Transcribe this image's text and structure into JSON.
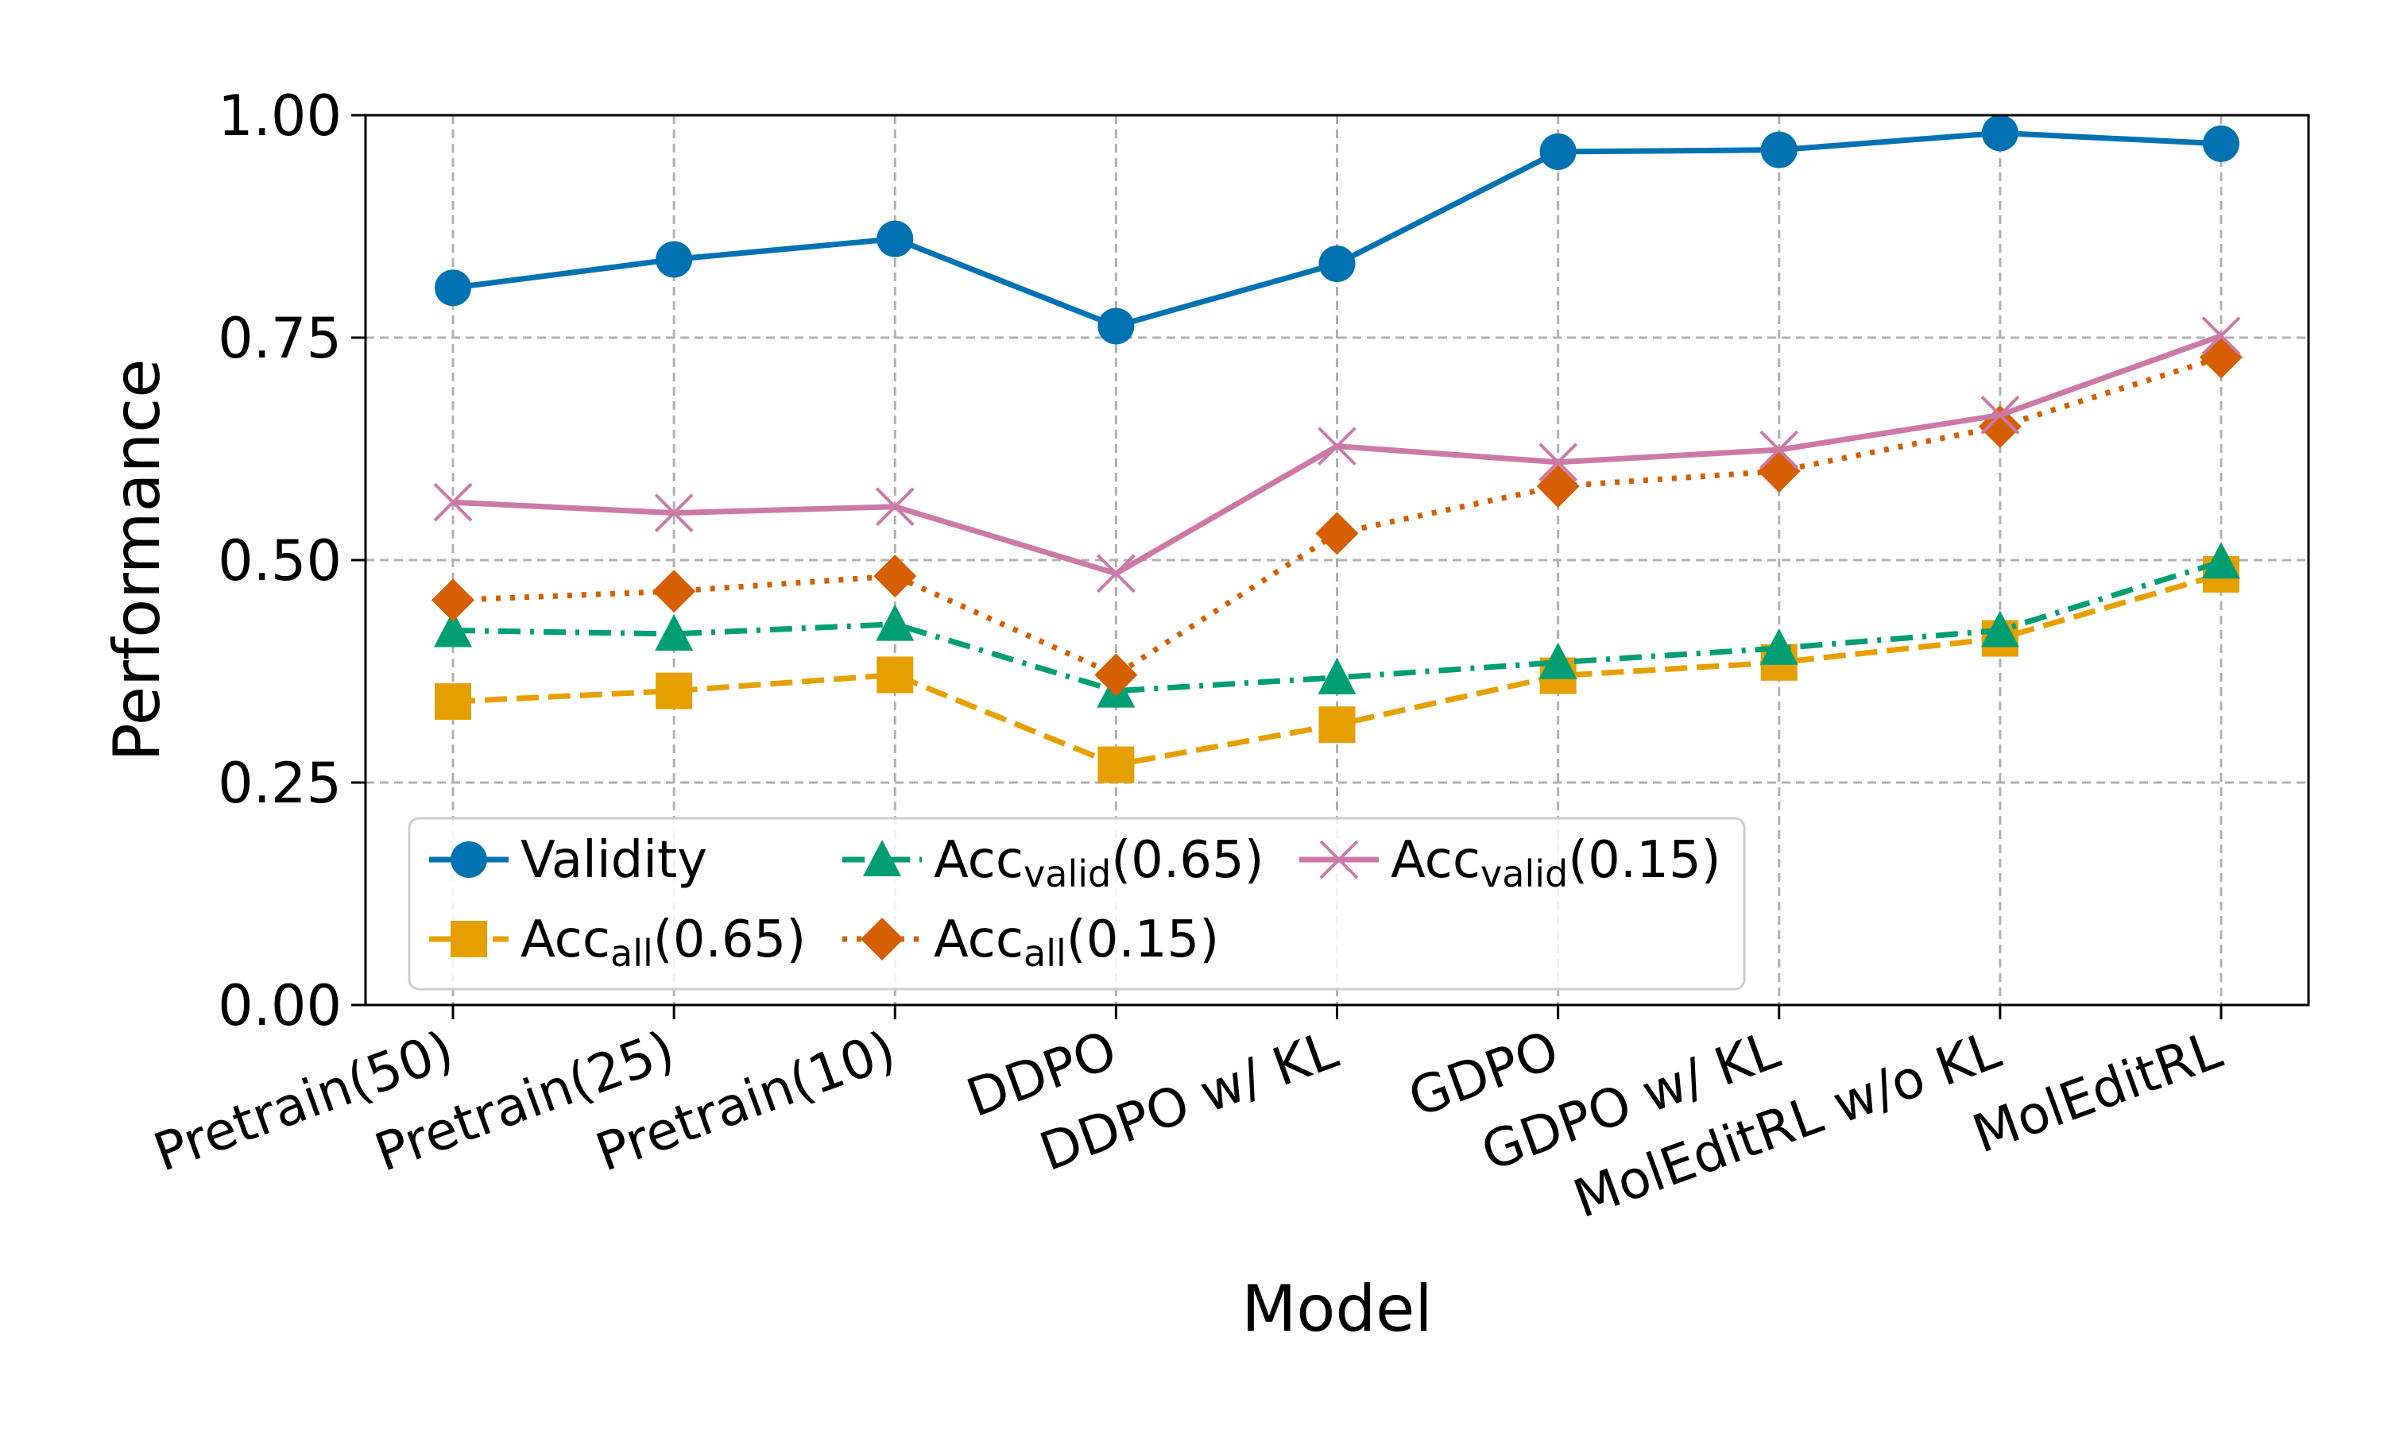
{
  "chart_data": {
    "type": "line",
    "title": "",
    "xlabel": "Model",
    "ylabel": "Performance",
    "ylim": [
      0,
      1
    ],
    "yticks": [
      "0.00",
      "0.25",
      "0.50",
      "0.75",
      "1.00"
    ],
    "ytick_values": [
      0,
      0.25,
      0.5,
      0.75,
      1.0
    ],
    "grid": true,
    "legend_position": "lower-left",
    "categories": [
      "Pretrain(50)",
      "Pretrain(25)",
      "Pretrain(10)",
      "DDPO",
      "DDPO w/ KL",
      "GDPO",
      "GDPO w/ KL",
      "MolEditRL w/o KL",
      "MolEditRL"
    ],
    "series": [
      {
        "name": "Validity",
        "label_main": "Validity",
        "label_sub": "",
        "label_suffix": "",
        "color": "#0072b2",
        "marker": "circle",
        "line_style": "solid",
        "values": [
          0.806,
          0.838,
          0.861,
          0.763,
          0.833,
          0.959,
          0.961,
          0.98,
          0.968
        ]
      },
      {
        "name": "Acc_all(0.65)",
        "label_main": "Acc",
        "label_sub": "all",
        "label_suffix": "(0.65)",
        "color": "#e69f00",
        "marker": "square",
        "line_style": "dashed",
        "values": [
          0.341,
          0.353,
          0.371,
          0.27,
          0.315,
          0.37,
          0.385,
          0.412,
          0.484
        ]
      },
      {
        "name": "Acc_valid(0.65)",
        "label_main": "Acc",
        "label_sub": "valid",
        "label_suffix": "(0.65)",
        "color": "#009e73",
        "marker": "triangle",
        "line_style": "dashdot",
        "values": [
          0.421,
          0.417,
          0.428,
          0.353,
          0.368,
          0.385,
          0.401,
          0.421,
          0.498
        ]
      },
      {
        "name": "Acc_all(0.15)",
        "label_main": "Acc",
        "label_sub": "all",
        "label_suffix": "(0.15)",
        "color": "#d55e00",
        "marker": "diamond",
        "line_style": "dotted",
        "values": [
          0.455,
          0.465,
          0.482,
          0.371,
          0.53,
          0.583,
          0.6,
          0.65,
          0.728
        ]
      },
      {
        "name": "Acc_valid(0.15)",
        "label_main": "Acc",
        "label_sub": "valid",
        "label_suffix": "(0.15)",
        "color": "#cc79a7",
        "marker": "x",
        "line_style": "solid",
        "values": [
          0.565,
          0.553,
          0.56,
          0.485,
          0.628,
          0.61,
          0.624,
          0.663,
          0.752
        ]
      }
    ]
  }
}
